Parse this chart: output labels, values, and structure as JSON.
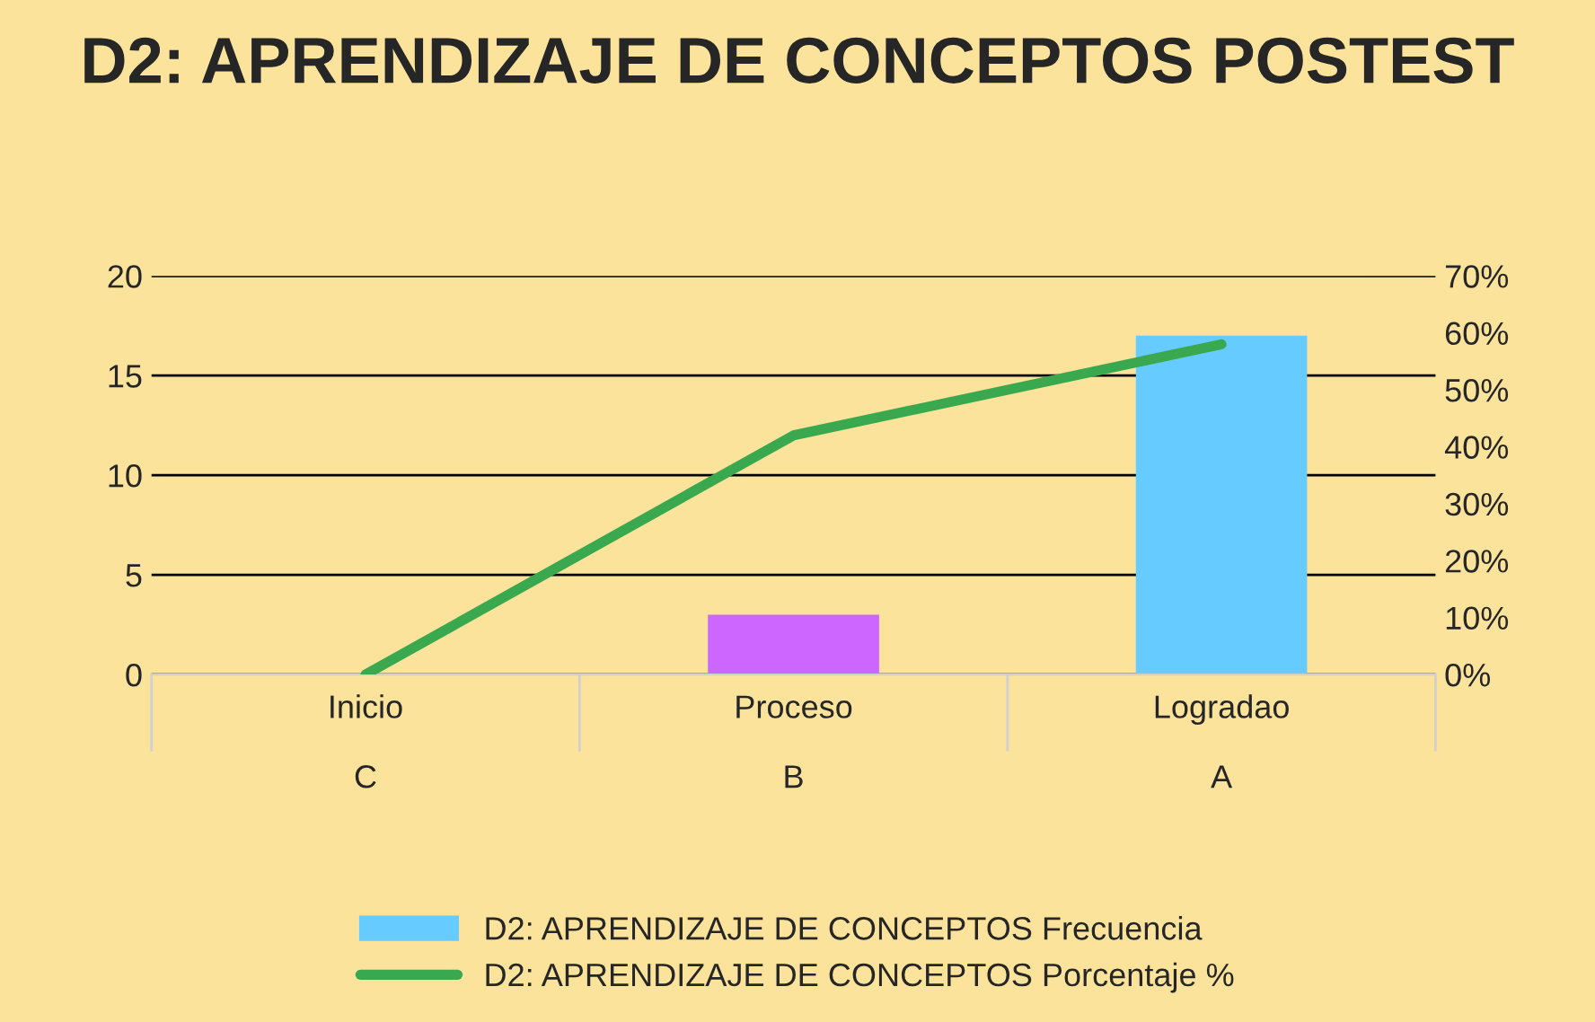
{
  "chart_data": {
    "type": "bar",
    "title": "D2: APRENDIZAJE DE CONCEPTOS POSTEST",
    "categories": [
      "Inicio\n\nC",
      "Proceso\n\nB",
      "Logradao\n\nA"
    ],
    "series": [
      {
        "name": "D2: APRENDIZAJE DE CONCEPTOS Frecuencia",
        "color": "#66ccff",
        "colors": [
          "#66ccff",
          "#cc66ff",
          "#66ccff"
        ],
        "values": [
          0,
          3,
          17
        ]
      },
      {
        "name": "D2: APRENDIZAJE DE CONCEPTOS Porcentaje %",
        "type": "line",
        "axis": "y2",
        "color": "#3aa84e",
        "values": [
          0,
          42,
          58
        ]
      }
    ],
    "ylim": [
      0,
      20
    ],
    "yticks": [
      0,
      5,
      10,
      15,
      20
    ],
    "y2lim": [
      0,
      70
    ],
    "y2ticks": [
      {
        "value": 0,
        "label": "0%"
      },
      {
        "value": 10,
        "label": "10%"
      },
      {
        "value": 20,
        "label": "20%"
      },
      {
        "value": 30,
        "label": "30%"
      },
      {
        "value": 40,
        "label": "40%"
      },
      {
        "value": 50,
        "label": "50%"
      },
      {
        "value": 60,
        "label": "60%"
      },
      {
        "value": 70,
        "label": "70%"
      }
    ],
    "grid": "y",
    "legend": "bottom",
    "marker": "none",
    "line_style": "solid"
  }
}
